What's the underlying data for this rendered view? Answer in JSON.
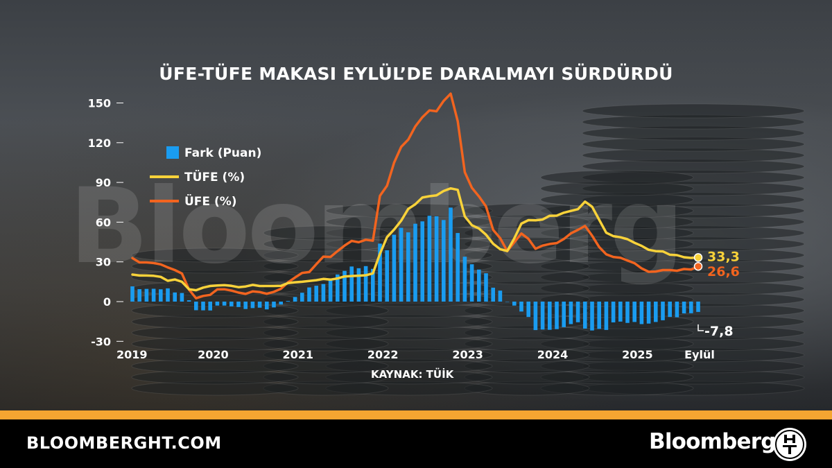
{
  "site": "BLOOMBERGHT.COM",
  "brand": "Bloomberg",
  "watermark": "Bloomberg",
  "colors": {
    "fark": "#1a9cf0",
    "tufe": "#f8d23a",
    "ufe": "#f2641f",
    "orange_band": "#f5a531"
  },
  "chart_data": {
    "type": "bar+line",
    "title": "ÜFE-TÜFE MAKASI EYLÜL’DE DARALMAYI SÜRDÜRDÜ",
    "source": "KAYNAK: TÜİK",
    "ylim": [
      -30,
      160
    ],
    "yticks": [
      150,
      120,
      90,
      60,
      30,
      0,
      -30
    ],
    "xticks": [
      "2019",
      "2020",
      "2021",
      "2022",
      "2023",
      "2024",
      "2025",
      "Eylül"
    ],
    "months": [
      "2019-01",
      "2019-02",
      "2019-03",
      "2019-04",
      "2019-05",
      "2019-06",
      "2019-07",
      "2019-08",
      "2019-09",
      "2019-10",
      "2019-11",
      "2019-12",
      "2020-01",
      "2020-02",
      "2020-03",
      "2020-04",
      "2020-05",
      "2020-06",
      "2020-07",
      "2020-08",
      "2020-09",
      "2020-10",
      "2020-11",
      "2020-12",
      "2021-01",
      "2021-02",
      "2021-03",
      "2021-04",
      "2021-05",
      "2021-06",
      "2021-07",
      "2021-08",
      "2021-09",
      "2021-10",
      "2021-11",
      "2021-12",
      "2022-01",
      "2022-02",
      "2022-03",
      "2022-04",
      "2022-05",
      "2022-06",
      "2022-07",
      "2022-08",
      "2022-09",
      "2022-10",
      "2022-11",
      "2022-12",
      "2023-01",
      "2023-02",
      "2023-03",
      "2023-04",
      "2023-05",
      "2023-06",
      "2023-07",
      "2023-08",
      "2023-09",
      "2023-10",
      "2023-11",
      "2023-12",
      "2024-01",
      "2024-02",
      "2024-03",
      "2024-04",
      "2024-05",
      "2024-06",
      "2024-07",
      "2024-08",
      "2024-09",
      "2024-10",
      "2024-11",
      "2024-12",
      "2025-01",
      "2025-02",
      "2025-03",
      "2025-04",
      "2025-05",
      "2025-06",
      "2025-07",
      "2025-08",
      "2025-09"
    ],
    "grid": false,
    "legend_position": "top-left",
    "legend": [
      {
        "label": "Fark (Puan)",
        "kind": "bar"
      },
      {
        "label": "TÜFE (%)",
        "kind": "line"
      },
      {
        "label": "ÜFE (%)",
        "kind": "line"
      }
    ],
    "series": [
      {
        "name": "Fark (Puan)",
        "kind": "bar",
        "values": [
          11.5,
          9.4,
          9.6,
          9.7,
          9.3,
          10.0,
          6.9,
          6.5,
          1.0,
          -6.5,
          -6.6,
          -6.7,
          -3.0,
          -3.0,
          -3.6,
          -4.1,
          -5.6,
          -4.9,
          -4.6,
          -5.9,
          -4.4,
          -2.2,
          0.5,
          3.5,
          6.7,
          10.7,
          12.0,
          13.3,
          17.1,
          20.5,
          23.2,
          26.5,
          25.2,
          26.8,
          24.7,
          43.8,
          38.8,
          50.5,
          55.7,
          52.3,
          58.8,
          60.6,
          64.8,
          64.4,
          61.6,
          71.0,
          51.8,
          33.9,
          28.2,
          24.2,
          21.4,
          10.5,
          8.3,
          -0.2,
          -3.0,
          -7.5,
          -11.6,
          -21.5,
          -21.1,
          -21.3,
          -20.8,
          -19.3,
          -17.0,
          -15.6,
          -20.4,
          -21.8,
          -20.6,
          -21.4,
          -15.7,
          -15.1,
          -16.1,
          -15.4,
          -17.0,
          -16.6,
          -15.4,
          -14.1,
          -11.6,
          -11.8,
          -8.9,
          -8.8,
          -7.8
        ]
      },
      {
        "name": "TÜFE (%)",
        "kind": "line",
        "values": [
          20.4,
          19.7,
          19.7,
          19.5,
          18.7,
          15.7,
          16.7,
          15.0,
          9.3,
          8.6,
          10.6,
          11.8,
          12.2,
          12.4,
          11.9,
          10.9,
          11.4,
          12.6,
          11.8,
          11.8,
          11.8,
          11.9,
          14.0,
          14.6,
          15.0,
          15.6,
          16.2,
          17.1,
          16.6,
          17.5,
          19.0,
          19.3,
          19.6,
          19.9,
          21.3,
          36.1,
          48.7,
          54.4,
          61.1,
          70.0,
          73.5,
          78.6,
          79.6,
          80.2,
          83.5,
          85.5,
          84.4,
          64.3,
          57.7,
          55.2,
          50.5,
          43.7,
          39.6,
          38.2,
          47.8,
          58.9,
          61.5,
          61.4,
          62.0,
          64.8,
          64.9,
          67.1,
          68.5,
          69.8,
          75.5,
          71.6,
          61.8,
          52.0,
          49.4,
          48.6,
          47.1,
          44.4,
          42.1,
          39.1,
          38.1,
          37.9,
          35.4,
          35.1,
          33.5,
          33.0,
          33.3
        ]
      },
      {
        "name": "ÜFE (%)",
        "kind": "line",
        "values": [
          32.9,
          29.6,
          29.6,
          29.1,
          28.1,
          25.8,
          23.8,
          21.2,
          9.1,
          2.5,
          4.3,
          5.1,
          9.2,
          9.3,
          8.3,
          6.8,
          5.8,
          7.7,
          7.2,
          5.9,
          7.4,
          9.7,
          14.5,
          18.2,
          21.7,
          22.3,
          28.2,
          34.0,
          33.7,
          38.1,
          42.3,
          45.8,
          44.8,
          46.7,
          46.0,
          79.9,
          87.5,
          104.9,
          116.8,
          122.3,
          132.3,
          139.2,
          144.4,
          143.7,
          151.5,
          157.0,
          136.2,
          97.7,
          85.9,
          79.4,
          71.9,
          54.2,
          47.9,
          38.1,
          44.8,
          51.4,
          47.4,
          39.9,
          42.3,
          43.5,
          44.2,
          47.3,
          51.5,
          54.2,
          57.1,
          49.8,
          41.2,
          35.7,
          33.7,
          33.1,
          31.0,
          29.0,
          25.1,
          22.5,
          22.7,
          23.8,
          23.8,
          23.3,
          24.6,
          24.2,
          26.6
        ]
      }
    ],
    "annotations": [
      {
        "series": "TÜFE (%)",
        "text": "33,3"
      },
      {
        "series": "ÜFE (%)",
        "text": "26,6"
      },
      {
        "series": "Fark (Puan)",
        "text": "-7,8"
      }
    ]
  }
}
